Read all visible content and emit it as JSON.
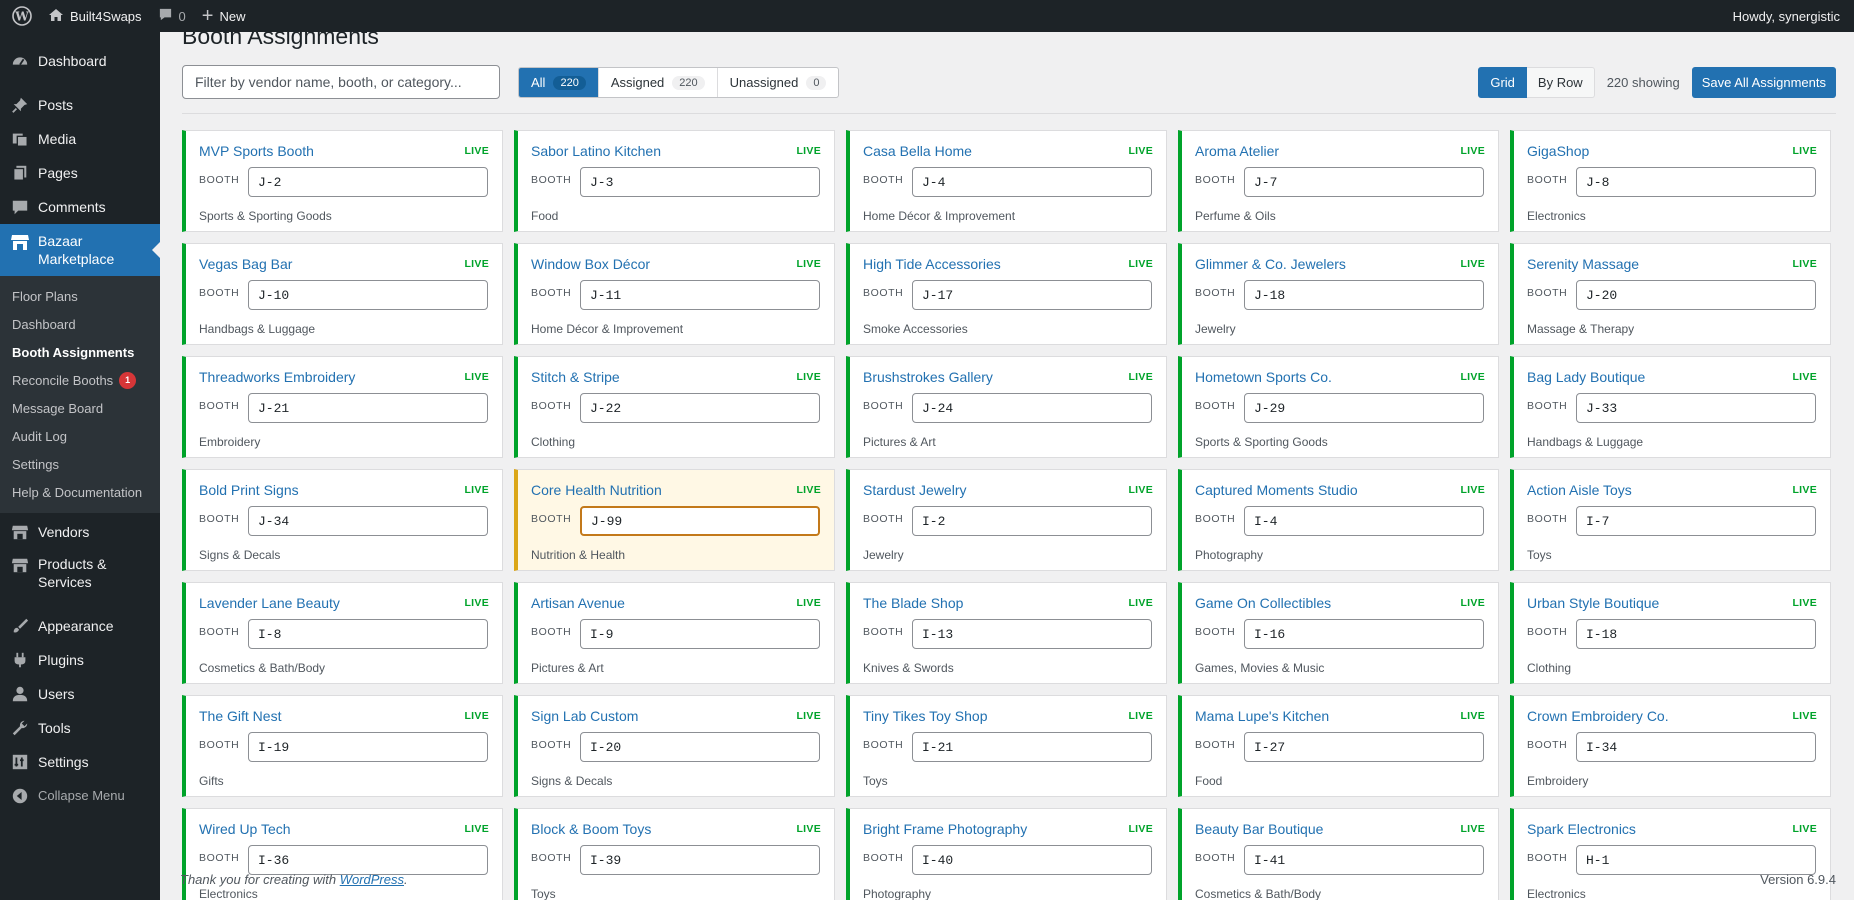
{
  "adminbar": {
    "site_name": "Built4Swaps",
    "comments_count": "0",
    "new_label": "New",
    "howdy": "Howdy, synergistic"
  },
  "sidebar": {
    "items": [
      {
        "label": "Dashboard",
        "icon": "dashboard-icon"
      },
      {
        "label": "Posts",
        "icon": "pin-icon"
      },
      {
        "label": "Media",
        "icon": "media-icon"
      },
      {
        "label": "Pages",
        "icon": "pages-icon"
      },
      {
        "label": "Comments",
        "icon": "comment-icon"
      },
      {
        "label": "Bazaar Marketplace",
        "icon": "store-icon"
      },
      {
        "label": "Vendors",
        "icon": "store-icon"
      },
      {
        "label": "Products & Services",
        "icon": "store-icon"
      },
      {
        "label": "Appearance",
        "icon": "brush-icon"
      },
      {
        "label": "Plugins",
        "icon": "plugin-icon"
      },
      {
        "label": "Users",
        "icon": "user-icon"
      },
      {
        "label": "Tools",
        "icon": "wrench-icon"
      },
      {
        "label": "Settings",
        "icon": "settings-icon"
      },
      {
        "label": "Collapse Menu",
        "icon": "collapse-icon"
      }
    ],
    "submenu": [
      {
        "label": "Floor Plans"
      },
      {
        "label": "Dashboard"
      },
      {
        "label": "Booth Assignments"
      },
      {
        "label": "Reconcile Booths",
        "badge": "1"
      },
      {
        "label": "Message Board"
      },
      {
        "label": "Audit Log"
      },
      {
        "label": "Settings"
      },
      {
        "label": "Help & Documentation"
      }
    ]
  },
  "main": {
    "title": "Booth Assignments",
    "filter_placeholder": "Filter by vendor name, booth, or category...",
    "tabs": [
      {
        "label": "All",
        "count": "220"
      },
      {
        "label": "Assigned",
        "count": "220"
      },
      {
        "label": "Unassigned",
        "count": "0"
      }
    ],
    "view_grid": "Grid",
    "view_row": "By Row",
    "showing": "220 showing",
    "save_all": "Save All Assignments",
    "booth_label": "BOOTH",
    "cards": [
      {
        "name": "MVP Sports Booth",
        "status": "LIVE",
        "booth": "J-2",
        "category": "Sports & Sporting Goods"
      },
      {
        "name": "Sabor Latino Kitchen",
        "status": "LIVE",
        "booth": "J-3",
        "category": "Food"
      },
      {
        "name": "Casa Bella Home",
        "status": "LIVE",
        "booth": "J-4",
        "category": "Home Décor & Improvement"
      },
      {
        "name": "Aroma Atelier",
        "status": "LIVE",
        "booth": "J-7",
        "category": "Perfume & Oils"
      },
      {
        "name": "GigaShop",
        "status": "LIVE",
        "booth": "J-8",
        "category": "Electronics"
      },
      {
        "name": "Vegas Bag Bar",
        "status": "LIVE",
        "booth": "J-10",
        "category": "Handbags & Luggage"
      },
      {
        "name": "Window Box Décor",
        "status": "LIVE",
        "booth": "J-11",
        "category": "Home Décor & Improvement"
      },
      {
        "name": "High Tide Accessories",
        "status": "LIVE",
        "booth": "J-17",
        "category": "Smoke Accessories"
      },
      {
        "name": "Glimmer & Co. Jewelers",
        "status": "LIVE",
        "booth": "J-18",
        "category": "Jewelry"
      },
      {
        "name": "Serenity Massage",
        "status": "LIVE",
        "booth": "J-20",
        "category": "Massage & Therapy"
      },
      {
        "name": "Threadworks Embroidery",
        "status": "LIVE",
        "booth": "J-21",
        "category": "Embroidery"
      },
      {
        "name": "Stitch & Stripe",
        "status": "LIVE",
        "booth": "J-22",
        "category": "Clothing"
      },
      {
        "name": "Brushstrokes Gallery",
        "status": "LIVE",
        "booth": "J-24",
        "category": "Pictures & Art"
      },
      {
        "name": "Hometown Sports Co.",
        "status": "LIVE",
        "booth": "J-29",
        "category": "Sports & Sporting Goods"
      },
      {
        "name": "Bag Lady Boutique",
        "status": "LIVE",
        "booth": "J-33",
        "category": "Handbags & Luggage"
      },
      {
        "name": "Bold Print Signs",
        "status": "LIVE",
        "booth": "J-34",
        "category": "Signs & Decals"
      },
      {
        "name": "Core Health Nutrition",
        "status": "LIVE",
        "booth": "J-99",
        "category": "Nutrition & Health",
        "highlight": true
      },
      {
        "name": "Stardust Jewelry",
        "status": "LIVE",
        "booth": "I-2",
        "category": "Jewelry"
      },
      {
        "name": "Captured Moments Studio",
        "status": "LIVE",
        "booth": "I-4",
        "category": "Photography"
      },
      {
        "name": "Action Aisle Toys",
        "status": "LIVE",
        "booth": "I-7",
        "category": "Toys"
      },
      {
        "name": "Lavender Lane Beauty",
        "status": "LIVE",
        "booth": "I-8",
        "category": "Cosmetics & Bath/Body"
      },
      {
        "name": "Artisan Avenue",
        "status": "LIVE",
        "booth": "I-9",
        "category": "Pictures & Art"
      },
      {
        "name": "The Blade Shop",
        "status": "LIVE",
        "booth": "I-13",
        "category": "Knives & Swords"
      },
      {
        "name": "Game On Collectibles",
        "status": "LIVE",
        "booth": "I-16",
        "category": "Games, Movies & Music"
      },
      {
        "name": "Urban Style Boutique",
        "status": "LIVE",
        "booth": "I-18",
        "category": "Clothing"
      },
      {
        "name": "The Gift Nest",
        "status": "LIVE",
        "booth": "I-19",
        "category": "Gifts"
      },
      {
        "name": "Sign Lab Custom",
        "status": "LIVE",
        "booth": "I-20",
        "category": "Signs & Decals"
      },
      {
        "name": "Tiny Tikes Toy Shop",
        "status": "LIVE",
        "booth": "I-21",
        "category": "Toys"
      },
      {
        "name": "Mama Lupe's Kitchen",
        "status": "LIVE",
        "booth": "I-27",
        "category": "Food"
      },
      {
        "name": "Crown Embroidery Co.",
        "status": "LIVE",
        "booth": "I-34",
        "category": "Embroidery"
      },
      {
        "name": "Wired Up Tech",
        "status": "LIVE",
        "booth": "I-36",
        "category": "Electronics"
      },
      {
        "name": "Block & Boom Toys",
        "status": "LIVE",
        "booth": "I-39",
        "category": "Toys"
      },
      {
        "name": "Bright Frame Photography",
        "status": "LIVE",
        "booth": "I-40",
        "category": "Photography"
      },
      {
        "name": "Beauty Bar Boutique",
        "status": "LIVE",
        "booth": "I-41",
        "category": "Cosmetics & Bath/Body"
      },
      {
        "name": "Spark Electronics",
        "status": "LIVE",
        "booth": "H-1",
        "category": "Electronics"
      }
    ]
  },
  "footer": {
    "thanks_prefix": "Thank you for creating with ",
    "thanks_link": "WordPress",
    "thanks_suffix": ".",
    "version": "Version 6.9.4"
  },
  "colors": {
    "accent": "#2271b1",
    "live_green": "#00a32a",
    "highlight_border": "#dba617",
    "sidebar_bg": "#1d2327"
  }
}
